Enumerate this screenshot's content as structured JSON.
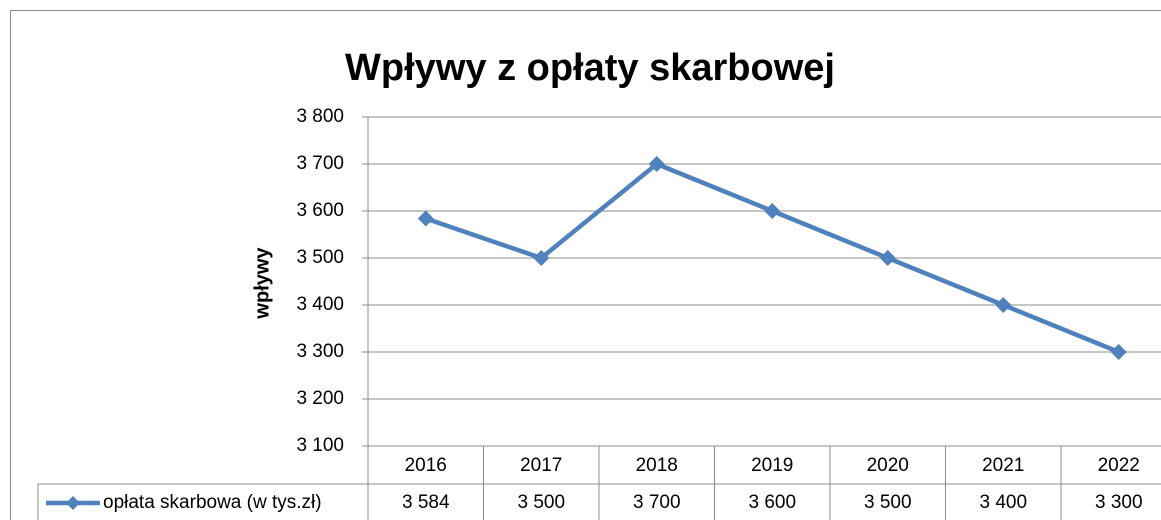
{
  "chart_data": {
    "type": "line",
    "title": "Wpływy z opłaty skarbowej",
    "y_axis_label": "wpływy",
    "categories": [
      "2016",
      "2017",
      "2018",
      "2019",
      "2020",
      "2021",
      "2022"
    ],
    "series": [
      {
        "name": "opłata skarbowa (w tys.zł)",
        "color": "#4f81bd",
        "values": [
          3584,
          3500,
          3700,
          3600,
          3500,
          3400,
          3300
        ],
        "value_labels": [
          "3 584",
          "3 500",
          "3 700",
          "3 600",
          "3 500",
          "3 400",
          "3 300"
        ]
      }
    ],
    "ylim": [
      3100,
      3800
    ],
    "yticks": [
      {
        "value": 3100,
        "label": "3 100"
      },
      {
        "value": 3200,
        "label": "3 200"
      },
      {
        "value": 3300,
        "label": "3 300"
      },
      {
        "value": 3400,
        "label": "3 400"
      },
      {
        "value": 3500,
        "label": "3 500"
      },
      {
        "value": 3600,
        "label": "3 600"
      },
      {
        "value": 3700,
        "label": "3 700"
      },
      {
        "value": 3800,
        "label": "3 800"
      }
    ],
    "grid": true,
    "data_table": true
  }
}
